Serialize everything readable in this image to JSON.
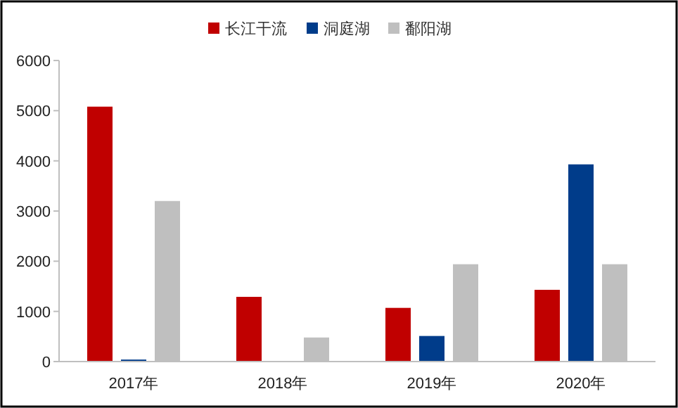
{
  "chart_data": {
    "type": "bar",
    "categories": [
      "2017年",
      "2018年",
      "2019年",
      "2020年"
    ],
    "series": [
      {
        "name": "长江干流",
        "color": "#c00000",
        "values": [
          5080,
          1290,
          1070,
          1430
        ]
      },
      {
        "name": "洞庭湖",
        "color": "#003c8a",
        "values": [
          40,
          0,
          510,
          3930
        ]
      },
      {
        "name": "鄱阳湖",
        "color": "#bfbfbf",
        "values": [
          3200,
          480,
          1940,
          1940
        ]
      }
    ],
    "ylim": [
      0,
      6000
    ],
    "yticks": [
      0,
      1000,
      2000,
      3000,
      4000,
      5000,
      6000
    ],
    "legend": "top",
    "grid": false
  }
}
